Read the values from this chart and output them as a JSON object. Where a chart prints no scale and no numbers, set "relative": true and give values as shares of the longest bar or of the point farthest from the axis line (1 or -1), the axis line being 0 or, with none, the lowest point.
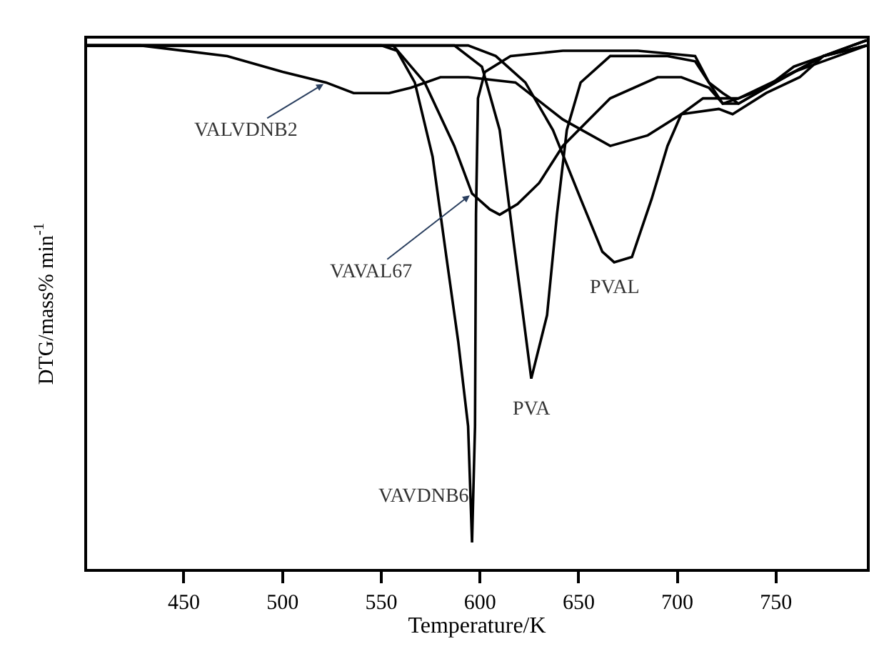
{
  "chart_data": {
    "type": "line",
    "relative": true,
    "xlabel": "Temperature/K",
    "ylabel": "DTG/mass% min$^{-1}$",
    "xlim": [
      401,
      796
    ],
    "xticks": [
      450,
      500,
      550,
      600,
      650,
      700,
      750
    ],
    "tick_labels": "x",
    "grid": false,
    "legend": false,
    "marker": "none",
    "line_style": "solid",
    "series": [
      {
        "name": "VALVDNB2",
        "color": "#000000",
        "x": [
          401,
          428,
          472,
          500,
          522,
          536,
          554,
          565,
          580,
          594,
          618,
          642,
          666,
          685,
          702,
          721,
          728,
          745,
          762,
          774,
          796
        ],
        "values": [
          0.99,
          0.99,
          0.97,
          0.94,
          0.92,
          0.9,
          0.9,
          0.91,
          0.93,
          0.93,
          0.92,
          0.85,
          0.8,
          0.82,
          0.86,
          0.87,
          0.86,
          0.9,
          0.93,
          0.97,
          0.99
        ]
      },
      {
        "name": "VAVAL67",
        "color": "#000000",
        "x": [
          401,
          556,
          572,
          587,
          596,
          605,
          610,
          619,
          630,
          642,
          666,
          690,
          702,
          716,
          723,
          731,
          745,
          759,
          774,
          796
        ],
        "values": [
          0.99,
          0.99,
          0.92,
          0.8,
          0.71,
          0.68,
          0.67,
          0.69,
          0.73,
          0.8,
          0.89,
          0.93,
          0.93,
          0.91,
          0.88,
          0.89,
          0.91,
          0.94,
          0.97,
          0.99
        ]
      },
      {
        "name": "VAVDNB6",
        "color": "#000000",
        "x": [
          401,
          550,
          558,
          567,
          576,
          583,
          589,
          594,
          596,
          597.5,
          598,
          599,
          602.5,
          615.5,
          642,
          680,
          709,
          716,
          723,
          731,
          745,
          759,
          774,
          796
        ],
        "values": [
          0.99,
          0.99,
          0.98,
          0.92,
          0.78,
          0.59,
          0.43,
          0.27,
          0.05,
          0.27,
          0.67,
          0.89,
          0.94,
          0.97,
          0.98,
          0.98,
          0.97,
          0.92,
          0.88,
          0.88,
          0.91,
          0.95,
          0.97,
          1.0
        ]
      },
      {
        "name": "PVA",
        "color": "#000000",
        "x": [
          401,
          587,
          601,
          610,
          617,
          626,
          634,
          639,
          644,
          651,
          666,
          695,
          709,
          716,
          723,
          731,
          745,
          774,
          796
        ],
        "values": [
          0.99,
          0.99,
          0.95,
          0.83,
          0.62,
          0.36,
          0.48,
          0.67,
          0.83,
          0.92,
          0.97,
          0.97,
          0.96,
          0.92,
          0.9,
          0.88,
          0.91,
          0.97,
          1.0
        ]
      },
      {
        "name": "PVAL",
        "color": "#000000",
        "x": [
          401,
          594,
          608,
          623,
          637,
          651,
          662,
          668,
          677,
          687,
          695,
          702,
          713,
          731,
          759,
          796
        ],
        "values": [
          0.99,
          0.99,
          0.97,
          0.92,
          0.83,
          0.7,
          0.6,
          0.58,
          0.59,
          0.7,
          0.8,
          0.86,
          0.89,
          0.89,
          0.94,
          0.99
        ]
      }
    ]
  }
}
